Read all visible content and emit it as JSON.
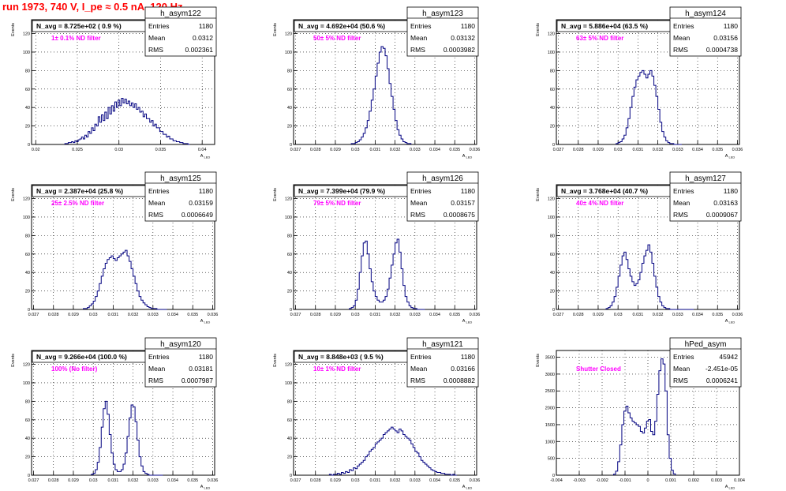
{
  "run_title": "run 1973,   740 V, I_pe ≈ 0.5 nA, 120 Hz",
  "colors": {
    "title": "#ff0000",
    "histogram_line": "#000080",
    "annotation": "#ff00ff",
    "grid": "#000000",
    "text": "#000000"
  },
  "chart_data": [
    {
      "type": "histogram",
      "name": "h_asym122",
      "title": "N_avg = 8.725e+02 ( 0.9 %)",
      "annotation": "1± 0.1% ND filter",
      "stats": {
        "entries_label": "Entries",
        "entries": "1180",
        "mean_label": "Mean",
        "mean": "0.0312",
        "rms_label": "RMS",
        "rms": "0.002361"
      },
      "ylabel": "Events",
      "xlabel": "A_LED",
      "xlim": [
        0.0195,
        0.0415
      ],
      "ylim": [
        0,
        135
      ],
      "xticks": [
        "0.02",
        "0.025",
        "0.03",
        "0.035",
        "0.04"
      ],
      "xtick_values": [
        0.02,
        0.025,
        0.03,
        0.035,
        0.04
      ],
      "yticks": [
        "0",
        "20",
        "40",
        "60",
        "80",
        "100",
        "120"
      ],
      "ytick_values": [
        0,
        20,
        40,
        60,
        80,
        100,
        120
      ],
      "grid": true,
      "bin_lo": 0.0235,
      "bin_hi": 0.0385,
      "counts": [
        1,
        1,
        2,
        2,
        3,
        2,
        4,
        3,
        5,
        6,
        8,
        6,
        10,
        8,
        14,
        12,
        18,
        15,
        22,
        20,
        30,
        24,
        32,
        26,
        35,
        28,
        40,
        33,
        42,
        36,
        46,
        40,
        48,
        42,
        50,
        45,
        49,
        44,
        47,
        42,
        45,
        40,
        44,
        38,
        40,
        35,
        36,
        30,
        33,
        28,
        28,
        24,
        26,
        20,
        22,
        18,
        18,
        14,
        14,
        11,
        11,
        8,
        9,
        6,
        6,
        4,
        4,
        3,
        3,
        2,
        2,
        1,
        1,
        1,
        0
      ]
    },
    {
      "type": "histogram",
      "name": "h_asym123",
      "title": "N_avg = 4.692e+04 (50.6 %)",
      "annotation": "50± 5% ND filter",
      "stats": {
        "entries_label": "Entries",
        "entries": "1180",
        "mean_label": "Mean",
        "mean": "0.03132",
        "rms_label": "RMS",
        "rms": "0.0003982"
      },
      "ylabel": "Events",
      "xlabel": "A_LED",
      "xlim": [
        0.0269,
        0.0361
      ],
      "ylim": [
        0,
        135
      ],
      "xticks": [
        "0.027",
        "0.028",
        "0.029",
        "0.03",
        "0.031",
        "0.032",
        "0.033",
        "0.034",
        "0.035",
        "0.036"
      ],
      "xtick_values": [
        0.027,
        0.028,
        0.029,
        0.03,
        0.031,
        0.032,
        0.033,
        0.034,
        0.035,
        0.036
      ],
      "yticks": [
        "0",
        "20",
        "40",
        "60",
        "80",
        "100",
        "120"
      ],
      "ytick_values": [
        0,
        20,
        40,
        60,
        80,
        100,
        120
      ],
      "grid": true,
      "bin_lo": 0.0298,
      "bin_hi": 0.0328,
      "counts": [
        1,
        1,
        2,
        3,
        5,
        8,
        12,
        18,
        26,
        36,
        48,
        60,
        74,
        88,
        100,
        106,
        104,
        96,
        82,
        66,
        52,
        38,
        26,
        16,
        10,
        6,
        3,
        2,
        1,
        1
      ]
    },
    {
      "type": "histogram",
      "name": "h_asym124",
      "title": "N_avg = 5.886e+04 (63.5 %)",
      "annotation": "63± 5% ND filter",
      "stats": {
        "entries_label": "Entries",
        "entries": "1180",
        "mean_label": "Mean",
        "mean": "0.03156",
        "rms_label": "RMS",
        "rms": "0.0004738"
      },
      "ylabel": "Events",
      "xlabel": "A_LED",
      "xlim": [
        0.0269,
        0.0361
      ],
      "ylim": [
        0,
        135
      ],
      "xticks": [
        "0.027",
        "0.028",
        "0.029",
        "0.03",
        "0.031",
        "0.032",
        "0.033",
        "0.034",
        "0.035",
        "0.036"
      ],
      "xtick_values": [
        0.027,
        0.028,
        0.029,
        0.03,
        0.031,
        0.032,
        0.033,
        0.034,
        0.035,
        0.036
      ],
      "yticks": [
        "0",
        "20",
        "40",
        "60",
        "80",
        "100",
        "120"
      ],
      "ytick_values": [
        0,
        20,
        40,
        60,
        80,
        100,
        120
      ],
      "grid": true,
      "bin_lo": 0.0299,
      "bin_hi": 0.0332,
      "counts": [
        1,
        2,
        3,
        6,
        10,
        18,
        28,
        40,
        52,
        62,
        70,
        74,
        78,
        80,
        76,
        72,
        76,
        80,
        74,
        64,
        52,
        38,
        24,
        14,
        8,
        4,
        2,
        1,
        1,
        0,
        0,
        0,
        0
      ]
    },
    {
      "type": "histogram",
      "name": "h_asym125",
      "title": "N_avg = 2.387e+04 (25.8 %)",
      "annotation": "25± 2.5% ND filter",
      "stats": {
        "entries_label": "Entries",
        "entries": "1180",
        "mean_label": "Mean",
        "mean": "0.03159",
        "rms_label": "RMS",
        "rms": "0.0006649"
      },
      "ylabel": "Events",
      "xlabel": "A_LED",
      "xlim": [
        0.0269,
        0.0361
      ],
      "ylim": [
        0,
        135
      ],
      "xticks": [
        "0.027",
        "0.028",
        "0.029",
        "0.03",
        "0.031",
        "0.032",
        "0.033",
        "0.034",
        "0.035",
        "0.036"
      ],
      "xtick_values": [
        0.027,
        0.028,
        0.029,
        0.03,
        0.031,
        0.032,
        0.033,
        0.034,
        0.035,
        0.036
      ],
      "yticks": [
        "0",
        "20",
        "40",
        "60",
        "80",
        "100",
        "120"
      ],
      "ytick_values": [
        0,
        20,
        40,
        60,
        80,
        100,
        120
      ],
      "grid": true,
      "bin_lo": 0.0295,
      "bin_hi": 0.0337,
      "counts": [
        1,
        1,
        2,
        4,
        6,
        9,
        14,
        20,
        28,
        36,
        44,
        50,
        54,
        56,
        58,
        55,
        53,
        56,
        58,
        60,
        62,
        64,
        58,
        52,
        44,
        36,
        28,
        20,
        14,
        10,
        7,
        5,
        3,
        2,
        1,
        1,
        1,
        0,
        0,
        0,
        0,
        0
      ]
    },
    {
      "type": "histogram",
      "name": "h_asym126",
      "title": "N_avg = 7.399e+04 (79.9 %)",
      "annotation": "79± 5% ND filter",
      "stats": {
        "entries_label": "Entries",
        "entries": "1180",
        "mean_label": "Mean",
        "mean": "0.03157",
        "rms_label": "RMS",
        "rms": "0.0008675"
      },
      "ylabel": "Events",
      "xlabel": "A_LED",
      "xlim": [
        0.0269,
        0.0361
      ],
      "ylim": [
        0,
        135
      ],
      "xticks": [
        "0.027",
        "0.028",
        "0.029",
        "0.03",
        "0.031",
        "0.032",
        "0.033",
        "0.034",
        "0.035",
        "0.036"
      ],
      "xtick_values": [
        0.027,
        0.028,
        0.029,
        0.03,
        0.031,
        0.032,
        0.033,
        0.034,
        0.035,
        0.036
      ],
      "yticks": [
        "0",
        "20",
        "40",
        "60",
        "80",
        "100",
        "120"
      ],
      "ytick_values": [
        0,
        20,
        40,
        60,
        80,
        100,
        120
      ],
      "grid": true,
      "bin_lo": 0.0297,
      "bin_hi": 0.0335,
      "counts": [
        1,
        2,
        4,
        10,
        22,
        40,
        58,
        72,
        74,
        60,
        44,
        30,
        20,
        14,
        10,
        8,
        8,
        10,
        14,
        22,
        34,
        48,
        60,
        72,
        76,
        62,
        44,
        26,
        14,
        8,
        4,
        2,
        1,
        1,
        0,
        0,
        0,
        0
      ]
    },
    {
      "type": "histogram",
      "name": "h_asym127",
      "title": "N_avg = 3.768e+04 (40.7 %)",
      "annotation": "40± 4% ND filter",
      "stats": {
        "entries_label": "Entries",
        "entries": "1180",
        "mean_label": "Mean",
        "mean": "0.03163",
        "rms_label": "RMS",
        "rms": "0.0009067"
      },
      "ylabel": "Events",
      "xlabel": "A_LED",
      "xlim": [
        0.0269,
        0.0361
      ],
      "ylim": [
        0,
        135
      ],
      "xticks": [
        "0.027",
        "0.028",
        "0.029",
        "0.03",
        "0.031",
        "0.032",
        "0.033",
        "0.034",
        "0.035",
        "0.036"
      ],
      "xtick_values": [
        0.027,
        0.028,
        0.029,
        0.03,
        0.031,
        0.032,
        0.033,
        0.034,
        0.035,
        0.036
      ],
      "yticks": [
        "0",
        "20",
        "40",
        "60",
        "80",
        "100",
        "120"
      ],
      "ytick_values": [
        0,
        20,
        40,
        60,
        80,
        100,
        120
      ],
      "grid": true,
      "bin_lo": 0.0294,
      "bin_hi": 0.0338,
      "counts": [
        1,
        2,
        4,
        8,
        14,
        24,
        36,
        48,
        58,
        62,
        54,
        44,
        36,
        30,
        26,
        28,
        32,
        40,
        50,
        58,
        64,
        70,
        62,
        50,
        36,
        24,
        14,
        8,
        4,
        2,
        1,
        1,
        0,
        0,
        0,
        0,
        0,
        0,
        0,
        0,
        0,
        0,
        0,
        0
      ]
    },
    {
      "type": "histogram",
      "name": "h_asym120",
      "title": "N_avg = 9.266e+04 (100.0 %)",
      "annotation": "100% (No filter)",
      "stats": {
        "entries_label": "Entries",
        "entries": "1180",
        "mean_label": "Mean",
        "mean": "0.03181",
        "rms_label": "RMS",
        "rms": "0.0007987"
      },
      "ylabel": "Events",
      "xlabel": "A_LED",
      "xlim": [
        0.0269,
        0.0361
      ],
      "ylim": [
        0,
        135
      ],
      "xticks": [
        "0.027",
        "0.028",
        "0.029",
        "0.03",
        "0.031",
        "0.032",
        "0.033",
        "0.034",
        "0.035",
        "0.036"
      ],
      "xtick_values": [
        0.027,
        0.028,
        0.029,
        0.03,
        0.031,
        0.032,
        0.033,
        0.034,
        0.035,
        0.036
      ],
      "yticks": [
        "0",
        "20",
        "40",
        "60",
        "80",
        "100",
        "120"
      ],
      "ytick_values": [
        0,
        20,
        40,
        60,
        80,
        100,
        120
      ],
      "grid": true,
      "bin_lo": 0.0299,
      "bin_hi": 0.0335,
      "counts": [
        1,
        2,
        6,
        14,
        30,
        52,
        72,
        80,
        66,
        44,
        24,
        12,
        6,
        4,
        4,
        6,
        12,
        24,
        42,
        62,
        76,
        74,
        58,
        38,
        20,
        10,
        4,
        2,
        1,
        0,
        0,
        0,
        0,
        0,
        0,
        0
      ]
    },
    {
      "type": "histogram",
      "name": "h_asym121",
      "title": "N_avg = 8.848e+03 ( 9.5 %)",
      "annotation": "10± 1% ND filter",
      "stats": {
        "entries_label": "Entries",
        "entries": "1180",
        "mean_label": "Mean",
        "mean": "0.03166",
        "rms_label": "RMS",
        "rms": "0.0008882"
      },
      "ylabel": "Events",
      "xlabel": "A_LED",
      "xlim": [
        0.0269,
        0.0361
      ],
      "ylim": [
        0,
        135
      ],
      "xticks": [
        "0.027",
        "0.028",
        "0.029",
        "0.03",
        "0.031",
        "0.032",
        "0.033",
        "0.034",
        "0.035",
        "0.036"
      ],
      "xtick_values": [
        0.027,
        0.028,
        0.029,
        0.03,
        0.031,
        0.032,
        0.033,
        0.034,
        0.035,
        0.036
      ],
      "yticks": [
        "0",
        "20",
        "40",
        "60",
        "80",
        "100",
        "120"
      ],
      "ytick_values": [
        0,
        20,
        40,
        60,
        80,
        100,
        120
      ],
      "grid": true,
      "bin_lo": 0.0287,
      "bin_hi": 0.0351,
      "counts": [
        1,
        0,
        1,
        1,
        2,
        1,
        3,
        2,
        4,
        3,
        6,
        5,
        8,
        7,
        10,
        12,
        14,
        16,
        20,
        22,
        26,
        28,
        30,
        34,
        36,
        38,
        40,
        44,
        46,
        48,
        50,
        52,
        50,
        48,
        46,
        50,
        48,
        44,
        42,
        40,
        38,
        34,
        30,
        26,
        24,
        20,
        16,
        14,
        12,
        10,
        8,
        6,
        5,
        4,
        3,
        3,
        2,
        2,
        1,
        1,
        1,
        0,
        1,
        0
      ]
    },
    {
      "type": "histogram",
      "name": "hPed_asym",
      "title": "",
      "annotation": "Shutter Closed",
      "stats": {
        "entries_label": "Entries",
        "entries": "45942",
        "mean_label": "Mean",
        "mean": "-2.451e-05",
        "rms_label": "RMS",
        "rms": "0.0006241"
      },
      "ylabel": "Events",
      "xlabel": "A_LED",
      "xlim": [
        -0.004,
        0.004
      ],
      "ylim": [
        0,
        3700
      ],
      "xticks": [
        "-0.004",
        "-0.003",
        "-0.002",
        "-0.001",
        "0",
        "0.001",
        "0.002",
        "0.003",
        "0.004"
      ],
      "xtick_values": [
        -0.004,
        -0.003,
        -0.002,
        -0.001,
        0,
        0.001,
        0.002,
        0.003,
        0.004
      ],
      "yticks": [
        "0",
        "500",
        "1000",
        "1500",
        "2000",
        "2500",
        "3000",
        "3500"
      ],
      "ytick_values": [
        0,
        500,
        1000,
        1500,
        2000,
        2500,
        3000,
        3500
      ],
      "grid": true,
      "bin_lo": -0.0015,
      "bin_hi": 0.0012,
      "counts": [
        30,
        120,
        400,
        900,
        1500,
        1900,
        2050,
        1850,
        1700,
        1600,
        1550,
        1500,
        1450,
        1300,
        1250,
        1400,
        1600,
        1650,
        1300,
        1200,
        1600,
        2400,
        3100,
        3450,
        3300,
        2500,
        1200,
        500,
        150,
        40
      ]
    }
  ]
}
